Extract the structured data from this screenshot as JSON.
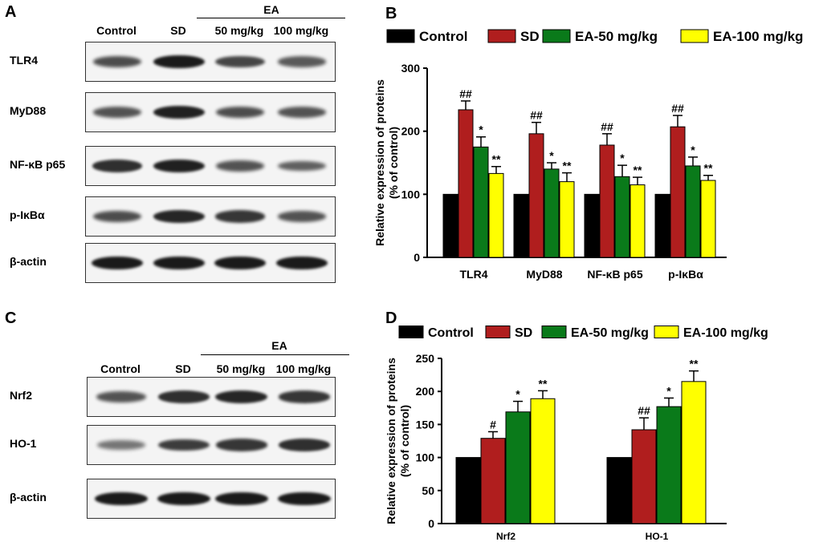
{
  "panels": {
    "a": "A",
    "b": "B",
    "c": "C",
    "d": "D"
  },
  "blot_a": {
    "lanes": [
      "Control",
      "SD",
      "50 mg/kg",
      "100 mg/kg"
    ],
    "group": "EA",
    "rows": [
      {
        "label": "TLR4",
        "intensity": [
          0.65,
          1.0,
          0.7,
          0.55
        ]
      },
      {
        "label": "MyD88",
        "intensity": [
          0.6,
          0.95,
          0.65,
          0.6
        ]
      },
      {
        "label": "NF-κB p65",
        "intensity": [
          0.85,
          0.95,
          0.6,
          0.5
        ]
      },
      {
        "label": "p-IκBα",
        "intensity": [
          0.65,
          0.9,
          0.8,
          0.6
        ]
      },
      {
        "label": "β-actin",
        "intensity": [
          1.0,
          1.0,
          1.0,
          1.0
        ]
      }
    ]
  },
  "blot_c": {
    "lanes": [
      "Control",
      "SD",
      "50 mg/kg",
      "100 mg/kg"
    ],
    "group": "EA",
    "rows": [
      {
        "label": "Nrf2",
        "intensity": [
          0.6,
          0.85,
          0.9,
          0.8
        ]
      },
      {
        "label": "HO-1",
        "intensity": [
          0.35,
          0.75,
          0.8,
          0.85
        ]
      },
      {
        "label": "β-actin",
        "intensity": [
          1.0,
          1.0,
          1.0,
          1.0
        ]
      }
    ]
  },
  "colors": [
    "#000000",
    "#b01e1e",
    "#0a7a1a",
    "#ffff00"
  ],
  "chart_data": [
    {
      "type": "bar",
      "panel": "B",
      "categories": [
        "TLR4",
        "MyD88",
        "NF-κB p65",
        "p-IκBα"
      ],
      "series": [
        {
          "name": "Control",
          "values": [
            100,
            100,
            100,
            100
          ],
          "errors": [
            0,
            0,
            0,
            0
          ],
          "marks": [
            "",
            "",
            "",
            ""
          ]
        },
        {
          "name": "SD",
          "values": [
            234,
            196,
            178,
            207
          ],
          "errors": [
            14,
            18,
            18,
            18
          ],
          "marks": [
            "##",
            "##",
            "##",
            "##"
          ]
        },
        {
          "name": "EA-50 mg/kg",
          "values": [
            175,
            140,
            128,
            145
          ],
          "errors": [
            16,
            10,
            18,
            14
          ],
          "marks": [
            "*",
            "*",
            "*",
            "*"
          ]
        },
        {
          "name": "EA-100 mg/kg",
          "values": [
            133,
            120,
            115,
            122
          ],
          "errors": [
            11,
            14,
            12,
            8
          ],
          "marks": [
            "**",
            "**",
            "**",
            "**"
          ]
        }
      ],
      "ylabel": "Relative expression of proteins",
      "ylabel2": "(% of control)",
      "ylim": [
        0,
        300
      ],
      "yticks": [
        0,
        100,
        200,
        300
      ]
    },
    {
      "type": "bar",
      "panel": "D",
      "categories": [
        "Nrf2",
        "HO-1"
      ],
      "series": [
        {
          "name": "Control",
          "values": [
            100,
            100
          ],
          "errors": [
            0,
            0
          ],
          "marks": [
            "",
            ""
          ]
        },
        {
          "name": "SD",
          "values": [
            129,
            142
          ],
          "errors": [
            10,
            18
          ],
          "marks": [
            "#",
            "##"
          ]
        },
        {
          "name": "EA-50 mg/kg",
          "values": [
            169,
            177
          ],
          "errors": [
            16,
            13
          ],
          "marks": [
            "*",
            "*"
          ]
        },
        {
          "name": "EA-100 mg/kg",
          "values": [
            189,
            215
          ],
          "errors": [
            12,
            16
          ],
          "marks": [
            "**",
            "**"
          ]
        }
      ],
      "ylabel": "Relative expression of proteins",
      "ylabel2": "(% of control)",
      "ylim": [
        0,
        250
      ],
      "yticks": [
        0,
        50,
        100,
        150,
        200,
        250
      ]
    }
  ]
}
